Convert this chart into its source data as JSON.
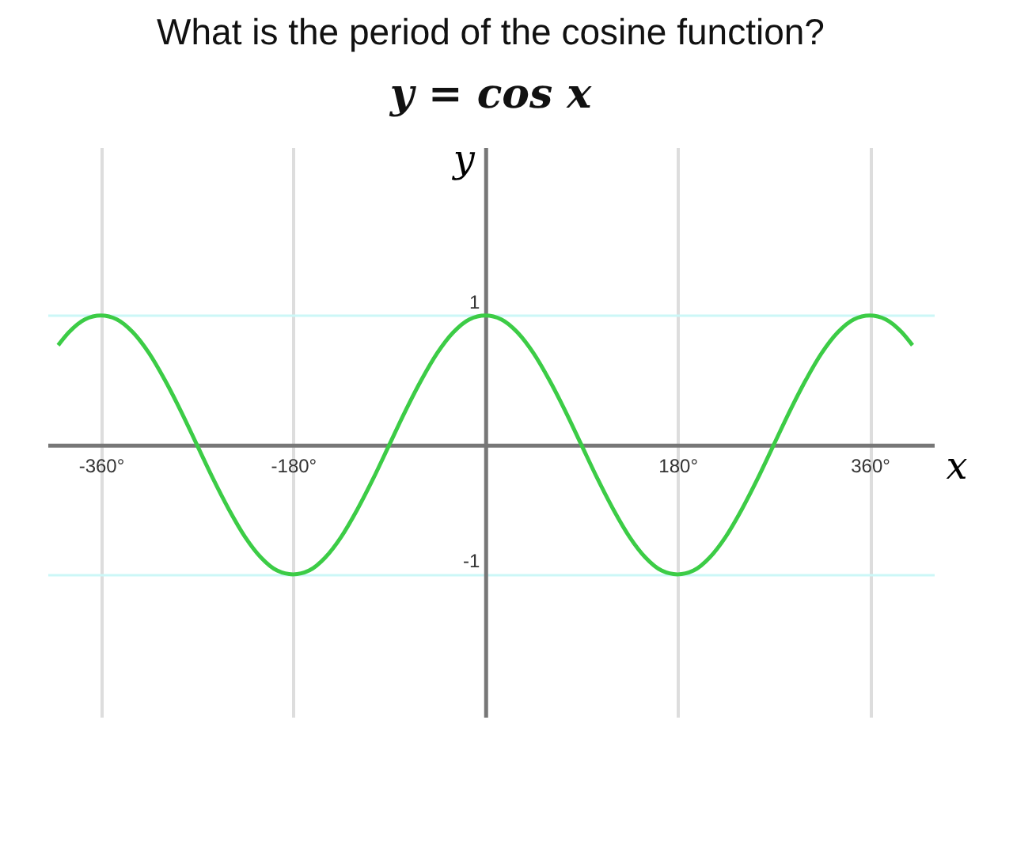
{
  "chart_data": {
    "type": "line",
    "title": "What is the period of the cosine function?",
    "subtitle": "y = cos x",
    "xlabel": "x",
    "ylabel": "y",
    "x": [
      -400,
      -390,
      -375,
      -360,
      -345,
      -330,
      -315,
      -300,
      -285,
      -270,
      -255,
      -240,
      -225,
      -210,
      -195,
      -180,
      -165,
      -150,
      -135,
      -120,
      -105,
      -90,
      -75,
      -60,
      -45,
      -30,
      -15,
      0,
      15,
      30,
      45,
      60,
      75,
      90,
      105,
      120,
      135,
      150,
      165,
      180,
      195,
      210,
      225,
      240,
      255,
      270,
      285,
      300,
      315,
      330,
      345,
      360,
      375,
      390,
      400
    ],
    "series": [
      {
        "color": "#3ccc46",
        "values": [
          0.77,
          0.87,
          0.97,
          1,
          0.97,
          0.87,
          0.71,
          0.5,
          0.26,
          0,
          -0.26,
          -0.5,
          -0.71,
          -0.87,
          -0.97,
          -1,
          -0.97,
          -0.87,
          -0.71,
          -0.5,
          -0.26,
          0,
          0.26,
          0.5,
          0.71,
          0.87,
          0.97,
          1,
          0.97,
          0.87,
          0.71,
          0.5,
          0.26,
          0,
          -0.26,
          -0.5,
          -0.71,
          -0.87,
          -0.97,
          -1,
          -0.97,
          -0.87,
          -0.71,
          -0.5,
          -0.26,
          0,
          0.26,
          0.5,
          0.71,
          0.87,
          0.97,
          1,
          0.97,
          0.87,
          0.77
        ]
      }
    ],
    "xlim": [
      -410,
      420
    ],
    "ylim": [
      -2.1,
      2.3
    ],
    "xticks": [
      {
        "value": -360,
        "label": "-360°"
      },
      {
        "value": -180,
        "label": "-180°"
      },
      {
        "value": 180,
        "label": "180°"
      },
      {
        "value": 360,
        "label": "360°"
      }
    ],
    "yticks": [
      1,
      -1
    ],
    "grid": true,
    "marker": "none",
    "line_style": "solid"
  }
}
